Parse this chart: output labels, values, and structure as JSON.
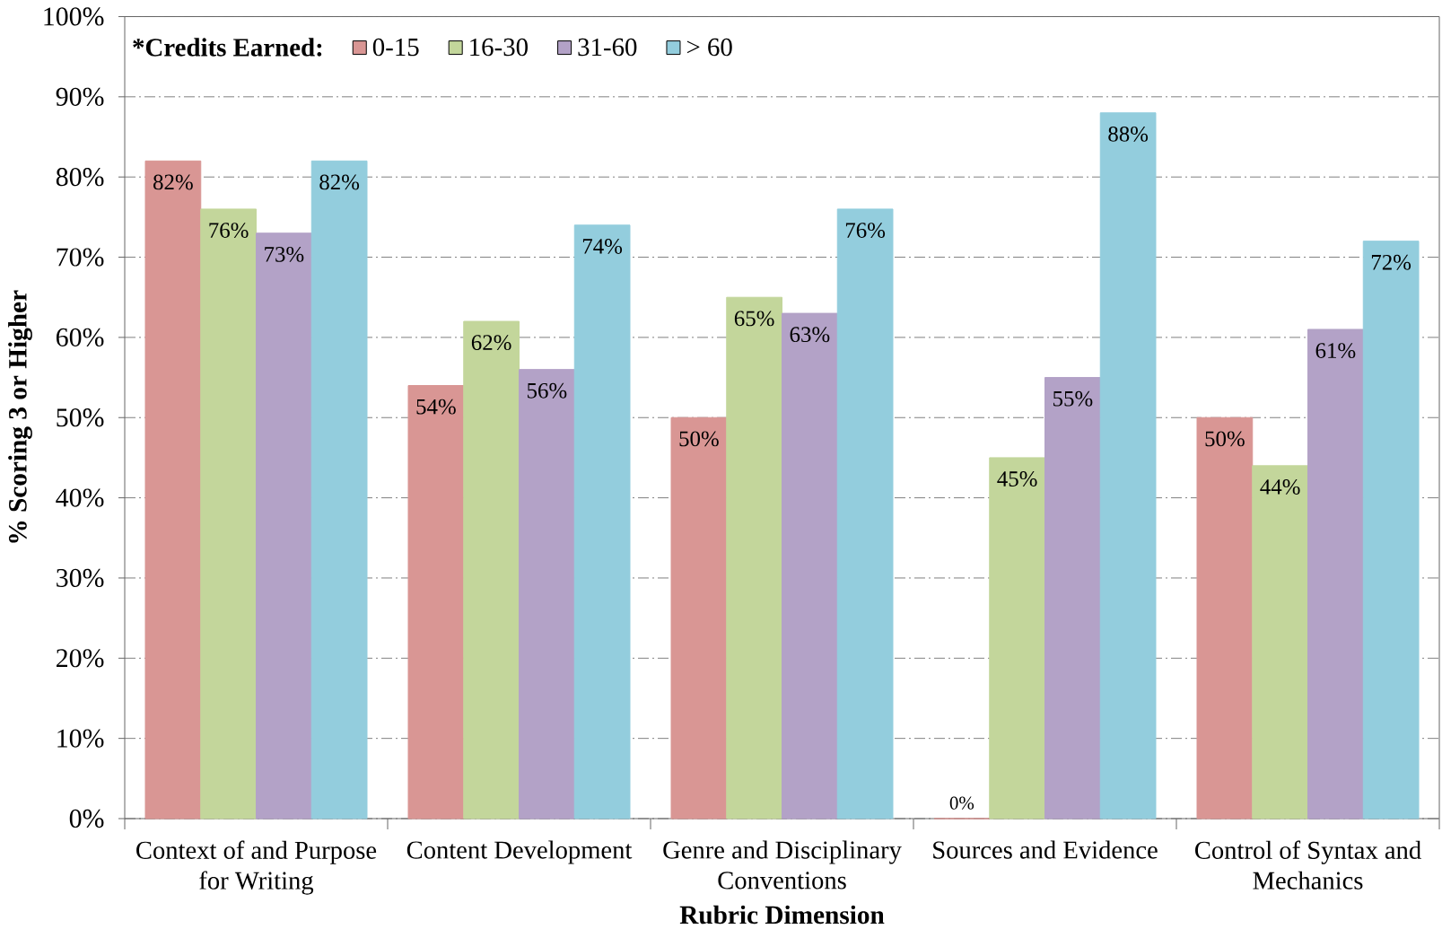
{
  "chart_data": {
    "type": "bar",
    "xlabel": "Rubric Dimension",
    "ylabel": "% Scoring 3 or Higher",
    "legend_title": "*Credits Earned:",
    "categories": [
      "Context of and Purpose for Writing",
      "Content Development",
      "Genre and Disciplinary Conventions",
      "Sources and Evidence",
      "Control of Syntax and Mechanics"
    ],
    "series": [
      {
        "name": "0-15",
        "color": "#d99694",
        "values": [
          82,
          54,
          50,
          0,
          50
        ],
        "value_labels": [
          "82%",
          "54%",
          "50%",
          "0%",
          "50%"
        ]
      },
      {
        "name": "16-30",
        "color": "#c3d69b",
        "values": [
          76,
          62,
          65,
          45,
          44
        ],
        "value_labels": [
          "76%",
          "62%",
          "65%",
          "45%",
          "44%"
        ]
      },
      {
        "name": "31-60",
        "color": "#b3a2c7",
        "values": [
          73,
          56,
          63,
          55,
          61
        ],
        "value_labels": [
          "73%",
          "56%",
          "63%",
          "55%",
          "61%"
        ]
      },
      {
        "name": "> 60",
        "color": "#93cddd",
        "values": [
          82,
          74,
          76,
          88,
          72
        ],
        "value_labels": [
          "82%",
          "74%",
          "76%",
          "88%",
          "72%"
        ]
      }
    ],
    "ylim": [
      0,
      100
    ],
    "yticks": [
      {
        "value": 0,
        "label": "0%"
      },
      {
        "value": 10,
        "label": "10%"
      },
      {
        "value": 20,
        "label": "20%"
      },
      {
        "value": 30,
        "label": "30%"
      },
      {
        "value": 40,
        "label": "40%"
      },
      {
        "value": 50,
        "label": "50%"
      },
      {
        "value": 60,
        "label": "60%"
      },
      {
        "value": 70,
        "label": "70%"
      },
      {
        "value": 80,
        "label": "80%"
      },
      {
        "value": 90,
        "label": "90%"
      },
      {
        "value": 100,
        "label": "100%"
      }
    ],
    "grid": "y",
    "legend": "top left"
  }
}
